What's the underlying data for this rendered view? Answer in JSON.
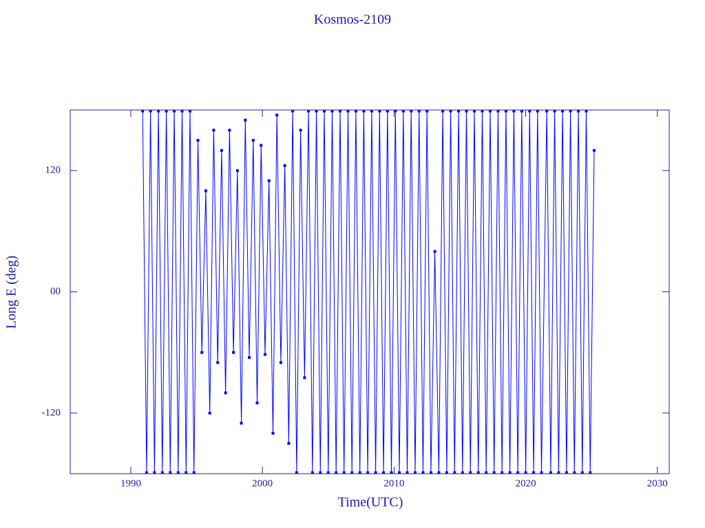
{
  "chart_data": {
    "type": "line",
    "title": "Kosmos-2109",
    "x_label": "Time(UTC)",
    "y_label": "Long E (deg)",
    "xlim": [
      1985.4,
      2030.9
    ],
    "xticks": [
      1990,
      2000,
      2010,
      2020,
      2030
    ],
    "ylim": [
      -180,
      180
    ],
    "yticks": [
      -120,
      {
        "value": 0,
        "label": "00"
      },
      120
    ],
    "grid": false,
    "series": [
      {
        "color": "#0000ff",
        "x": [
          1990.9,
          1991.2,
          1991.5,
          1991.8,
          1992.1,
          1992.4,
          1992.7,
          1993.0,
          1993.3,
          1993.6,
          1993.9,
          1994.2,
          1994.5,
          1994.8,
          1995.1,
          1995.4,
          1995.7,
          1996.0,
          1996.3,
          1996.6,
          1996.9,
          1997.2,
          1997.5,
          1997.8,
          1998.1,
          1998.4,
          1998.7,
          1999.0,
          1999.3,
          1999.6,
          1999.9,
          2000.2,
          2000.5,
          2000.8,
          2001.1,
          2001.4,
          2001.7,
          2002.0,
          2002.3,
          2002.6,
          2002.9,
          2003.2,
          2003.5,
          2003.8,
          2004.1,
          2004.4,
          2004.7,
          2005.0,
          2005.3,
          2005.6,
          2005.9,
          2006.2,
          2006.5,
          2006.8,
          2007.1,
          2007.4,
          2007.7,
          2008.0,
          2008.3,
          2008.6,
          2008.9,
          2009.2,
          2009.5,
          2009.8,
          2010.1,
          2010.4,
          2010.7,
          2011.0,
          2011.3,
          2011.6,
          2011.9,
          2012.2,
          2012.5,
          2012.8,
          2013.1,
          2013.4,
          2013.7,
          2014.0,
          2014.3,
          2014.6,
          2014.9,
          2015.2,
          2015.5,
          2015.8,
          2016.1,
          2016.4,
          2016.7,
          2017.0,
          2017.3,
          2017.6,
          2017.9,
          2018.2,
          2018.5,
          2018.8,
          2019.1,
          2019.4,
          2019.7,
          2020.0,
          2020.3,
          2020.6,
          2020.9,
          2021.2,
          2021.6,
          2021.9,
          2022.2,
          2022.5,
          2022.8,
          2023.1,
          2023.4,
          2023.7,
          2024.0,
          2024.3,
          2024.6,
          2024.9,
          2025.2
        ],
        "values": [
          179,
          -179,
          179,
          -179,
          179,
          -179,
          179,
          -179,
          179,
          -179,
          179,
          -179,
          179,
          -179,
          150,
          -60,
          100,
          -120,
          160,
          -70,
          140,
          -100,
          160,
          -60,
          120,
          -130,
          170,
          -65,
          150,
          -110,
          145,
          -62,
          110,
          -140,
          175,
          -70,
          125,
          -150,
          179,
          -179,
          160,
          -85,
          179,
          -179,
          179,
          -179,
          179,
          -179,
          179,
          -179,
          179,
          -179,
          179,
          -179,
          179,
          -179,
          179,
          -179,
          179,
          -179,
          179,
          -179,
          179,
          -179,
          179,
          -179,
          179,
          -179,
          179,
          -179,
          179,
          -179,
          179,
          -179,
          40,
          -179,
          179,
          -179,
          179,
          -179,
          179,
          -179,
          179,
          -179,
          179,
          -179,
          179,
          -179,
          179,
          -179,
          179,
          -179,
          179,
          -179,
          179,
          -179,
          179,
          -179,
          179,
          -179,
          179,
          -179,
          179,
          -179,
          179,
          -179,
          179,
          -179,
          179,
          -179,
          179,
          -179,
          179,
          -179,
          140
        ]
      }
    ]
  }
}
